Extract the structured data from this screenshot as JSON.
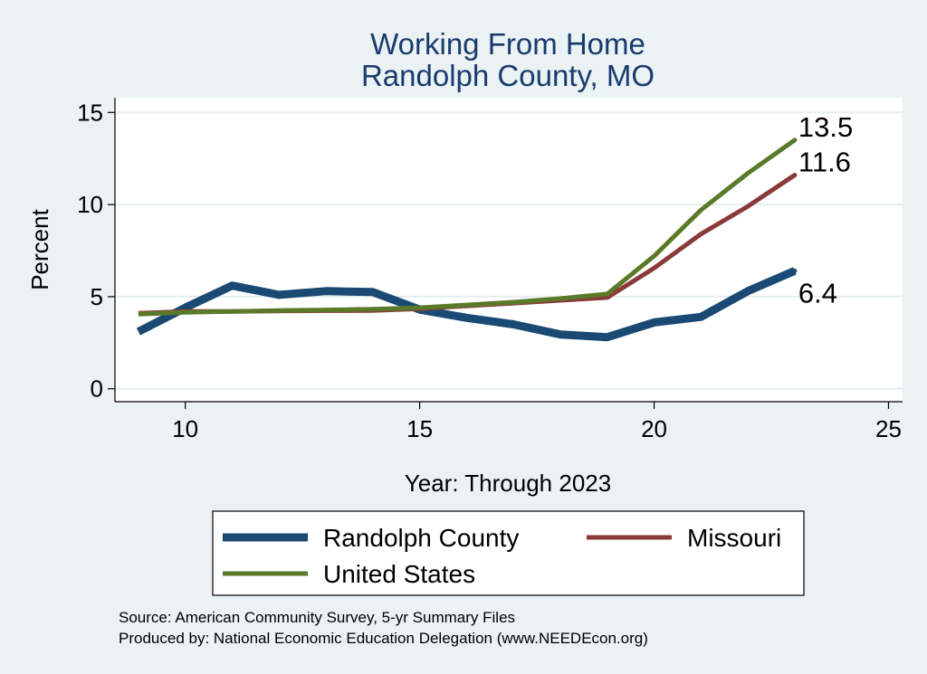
{
  "chart_data": {
    "type": "line",
    "title": [
      "Working From Home",
      "Randolph County, MO"
    ],
    "xlabel": "Year: Through 2023",
    "ylabel": "Percent",
    "xlim": [
      8.5,
      25.3
    ],
    "ylim": [
      -0.7,
      15.8
    ],
    "xticks": [
      10,
      15,
      20,
      25
    ],
    "yticks": [
      0,
      5,
      10,
      15
    ],
    "grid": true,
    "x": [
      9,
      10,
      11,
      12,
      13,
      14,
      15,
      16,
      17,
      18,
      19,
      20,
      21,
      22,
      23
    ],
    "series": [
      {
        "name": "Randolph County",
        "color": "#1a4a74",
        "values": [
          3.1,
          4.4,
          5.6,
          5.1,
          5.3,
          5.25,
          4.3,
          3.85,
          3.5,
          2.95,
          2.8,
          3.6,
          3.9,
          5.3,
          6.4
        ],
        "end_label": "6.4"
      },
      {
        "name": "Missouri",
        "color": "#8b3a3a",
        "values": [
          4.1,
          4.2,
          4.2,
          4.22,
          4.24,
          4.25,
          4.35,
          4.5,
          4.65,
          4.8,
          4.95,
          6.55,
          8.4,
          9.9,
          11.6
        ],
        "end_label": "11.6"
      },
      {
        "name": "United States",
        "color": "#5a7a2a",
        "values": [
          4.05,
          4.15,
          4.2,
          4.25,
          4.28,
          4.32,
          4.4,
          4.55,
          4.7,
          4.9,
          5.15,
          7.2,
          9.7,
          11.7,
          13.5
        ],
        "end_label": "13.5"
      }
    ],
    "legend": {
      "position": "bottom",
      "entries": [
        "Randolph County",
        "Missouri",
        "United States"
      ]
    },
    "source_lines": [
      "Source: American Community Survey, 5-yr Summary Files",
      "Produced by: National Economic Education Delegation (www.NEEDEcon.org)"
    ]
  }
}
